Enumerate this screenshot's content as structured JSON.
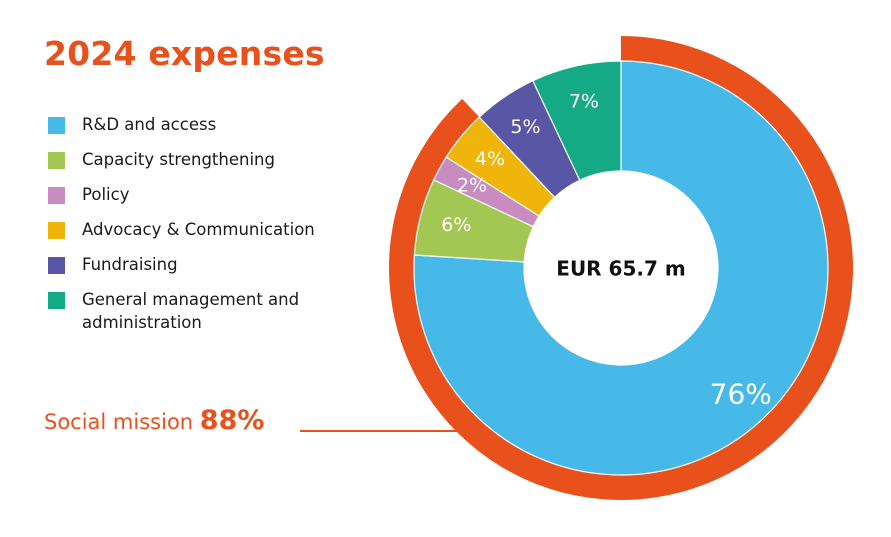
{
  "title": "2024 expenses",
  "center_label": "EUR 65.7 m",
  "social_mission": {
    "label": "Social mission",
    "value": "88%"
  },
  "legend": [
    {
      "label": "R&D and access",
      "color": "#47B9E9"
    },
    {
      "label": "Capacity strengthening",
      "color": "#A2C853"
    },
    {
      "label": "Policy",
      "color": "#C98CC0"
    },
    {
      "label": "Advocacy & Communication",
      "color": "#F0B50B"
    },
    {
      "label": "Fundraising",
      "color": "#5A56A6"
    },
    {
      "label": "General management and administration",
      "color": "#15AA86"
    }
  ],
  "chart_data": {
    "type": "pie",
    "subtype": "donut",
    "total_label": "EUR 65.7 m",
    "categories": [
      "R&D and access",
      "Capacity strengthening",
      "Policy",
      "Advocacy & Communication",
      "Fundraising",
      "General management and administration"
    ],
    "values": [
      76,
      6,
      2,
      4,
      5,
      7
    ],
    "value_labels": [
      "76%",
      "6%",
      "2%",
      "4%",
      "5%",
      "7%"
    ],
    "colors": [
      "#47B9E9",
      "#A2C853",
      "#C98CC0",
      "#F0B50B",
      "#5A56A6",
      "#15AA86"
    ],
    "outer_ring": {
      "label": "Social mission",
      "value_label": "88%",
      "value": 88,
      "color": "#E8501C"
    },
    "direction": "clockwise",
    "start": "top"
  }
}
